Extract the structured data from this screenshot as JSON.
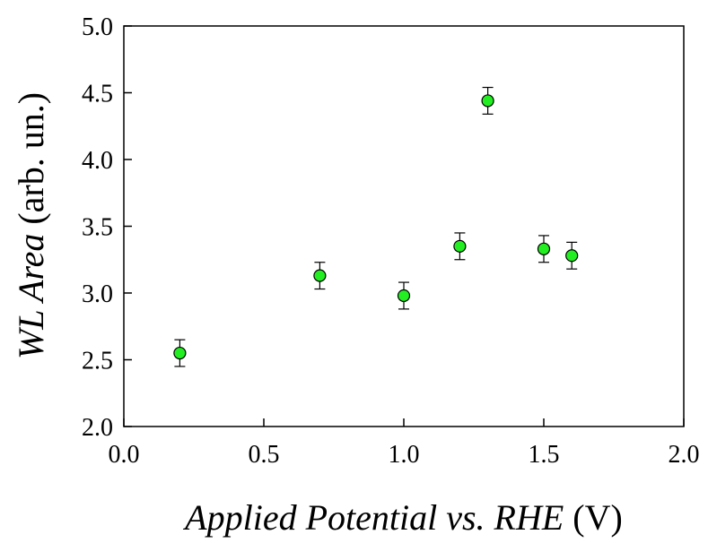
{
  "chart_data": {
    "type": "scatter",
    "title": "",
    "xlabel": {
      "italic_part": "Applied Potential vs. RHE",
      "roman_part": " (V)"
    },
    "ylabel": {
      "italic_part": "WL Area",
      "roman_part": " (arb. un.)"
    },
    "xlim": [
      0.0,
      2.0
    ],
    "ylim": [
      2.0,
      5.0
    ],
    "x_ticks": [
      0.0,
      0.5,
      1.0,
      1.5,
      2.0
    ],
    "x_tick_labels": [
      "0.0",
      "0.5",
      "1.0",
      "1.5",
      "2.0"
    ],
    "y_ticks": [
      2.0,
      2.5,
      3.0,
      3.5,
      4.0,
      4.5,
      5.0
    ],
    "y_tick_labels": [
      "2.0",
      "2.5",
      "3.0",
      "3.5",
      "4.0",
      "4.5",
      "5.0"
    ],
    "grid": false,
    "series": [
      {
        "marker_color": "#22ee22",
        "points": [
          {
            "x": 0.2,
            "y": 2.55,
            "err": 0.1
          },
          {
            "x": 0.7,
            "y": 3.13,
            "err": 0.1
          },
          {
            "x": 1.0,
            "y": 2.98,
            "err": 0.1
          },
          {
            "x": 1.2,
            "y": 3.35,
            "err": 0.1
          },
          {
            "x": 1.3,
            "y": 4.44,
            "err": 0.1
          },
          {
            "x": 1.5,
            "y": 3.33,
            "err": 0.1
          },
          {
            "x": 1.6,
            "y": 3.28,
            "err": 0.1
          }
        ]
      }
    ]
  }
}
